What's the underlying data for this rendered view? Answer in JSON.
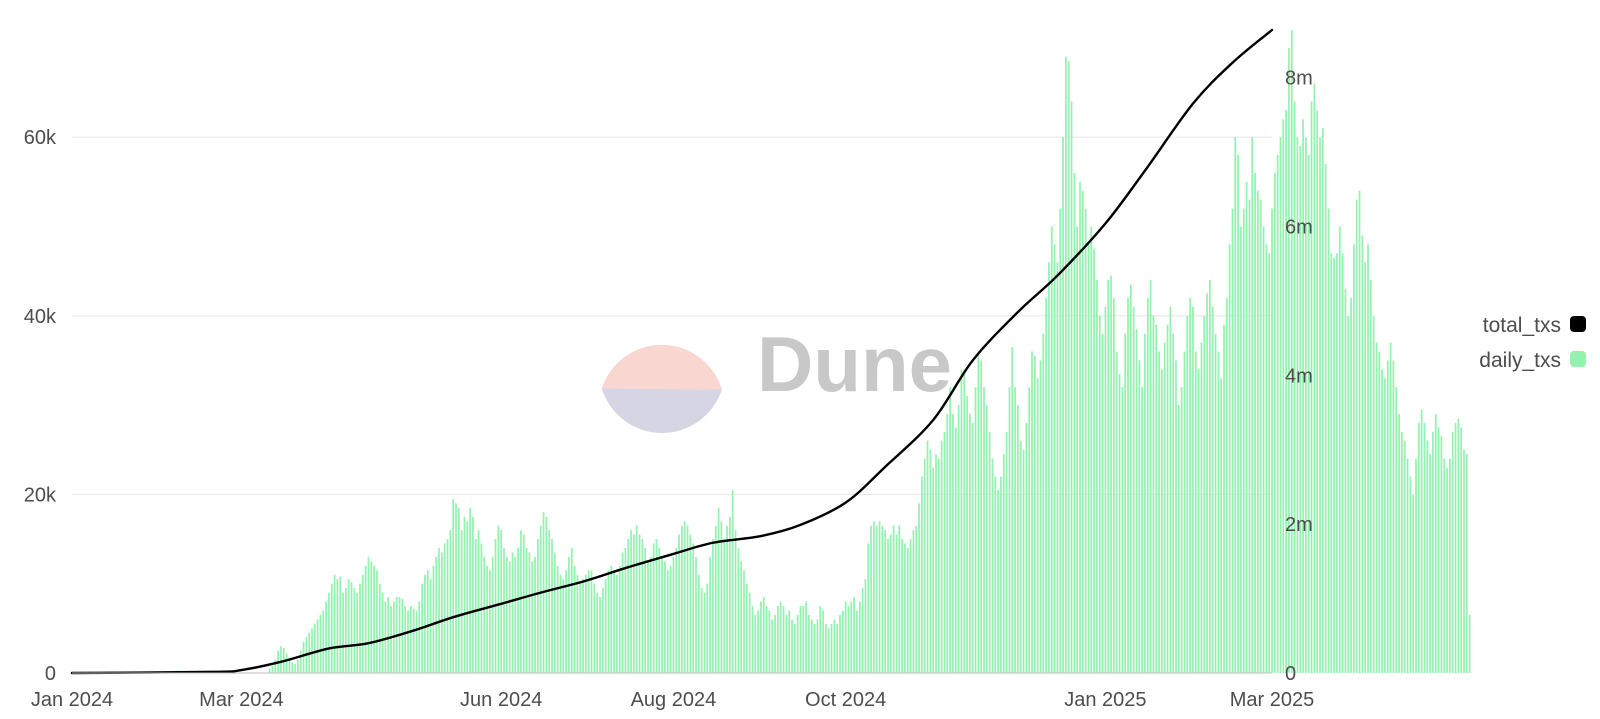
{
  "watermark": {
    "text": "Dune",
    "logo_colors": [
      "#f9d6cf",
      "#d5d5e3"
    ]
  },
  "legend": {
    "placement": "right",
    "items": [
      {
        "label": "total_txs",
        "color": "#000000"
      },
      {
        "label": "daily_txs",
        "color": "#94f2b0"
      }
    ]
  },
  "chart_data": {
    "type": "bar",
    "title": "",
    "xlabel": "",
    "ylabel": "",
    "grid": true,
    "x_range": [
      "2024-01-01",
      "2025-03-01"
    ],
    "x_ticks": [
      {
        "date": "2024-01-01",
        "label": "Jan 2024"
      },
      {
        "date": "2024-03-01",
        "label": "Mar 2024"
      },
      {
        "date": "2024-06-01",
        "label": "Jun 2024"
      },
      {
        "date": "2024-08-01",
        "label": "Aug 2024"
      },
      {
        "date": "2024-10-01",
        "label": "Oct 2024"
      },
      {
        "date": "2025-01-01",
        "label": "Jan 2025"
      },
      {
        "date": "2025-03-01",
        "label": "Mar 2025"
      }
    ],
    "y_left": {
      "ylim": [
        0,
        72000
      ],
      "ticks": [
        {
          "value": 0,
          "label": "0"
        },
        {
          "value": 20000,
          "label": "20k"
        },
        {
          "value": 40000,
          "label": "40k"
        },
        {
          "value": 60000,
          "label": "60k"
        }
      ]
    },
    "y_right": {
      "ylim": [
        0,
        8640000
      ],
      "ticks": [
        {
          "value": 0,
          "label": "0"
        },
        {
          "value": 2000000,
          "label": "2m"
        },
        {
          "value": 4000000,
          "label": "4m"
        },
        {
          "value": 6000000,
          "label": "6m"
        },
        {
          "value": 8000000,
          "label": "8m"
        }
      ]
    },
    "series": [
      {
        "name": "daily_txs",
        "type": "bar",
        "axis": "left",
        "color": "#94f2b0",
        "start_date": "2024-01-01",
        "interval": "day",
        "values": [
          0,
          0,
          0,
          0,
          0,
          0,
          0,
          0,
          0,
          0,
          0,
          0,
          0,
          0,
          0,
          0,
          0,
          0,
          0,
          0,
          0,
          0,
          0,
          0,
          0,
          0,
          0,
          0,
          0,
          0,
          0,
          0,
          0,
          0,
          0,
          0,
          0,
          300,
          0,
          0,
          0,
          0,
          0,
          0,
          0,
          0,
          0,
          0,
          0,
          0,
          0,
          0,
          0,
          0,
          0,
          0,
          0,
          0,
          0,
          0,
          0,
          0,
          0,
          0,
          0,
          0,
          0,
          0,
          0,
          0,
          500,
          800,
          1500,
          2500,
          3000,
          2800,
          2200,
          1500,
          1200,
          1000,
          1500,
          2500,
          3500,
          4000,
          4500,
          5000,
          5500,
          6000,
          6500,
          7000,
          8000,
          9000,
          10000,
          11000,
          10500,
          10800,
          9000,
          9500,
          10500,
          10200,
          9500,
          9000,
          10000,
          11000,
          12000,
          13000,
          12500,
          12000,
          11500,
          10000,
          9000,
          8000,
          8500,
          7500,
          8000,
          8500,
          8500,
          8300,
          7500,
          7000,
          7500,
          7200,
          7000,
          8000,
          10000,
          11000,
          11500,
          10500,
          12000,
          13000,
          14000,
          13500,
          14500,
          15000,
          16000,
          19500,
          19000,
          18500,
          16000,
          17500,
          17000,
          18500,
          17500,
          15000,
          16000,
          14500,
          13000,
          12000,
          11500,
          13000,
          15000,
          16500,
          16000,
          14000,
          13000,
          12500,
          13500,
          13000,
          14000,
          16000,
          15500,
          14000,
          13500,
          12500,
          13000,
          15000,
          16500,
          18000,
          17500,
          16000,
          15000,
          13500,
          12000,
          11000,
          10500,
          11500,
          13000,
          14000,
          12000,
          11000,
          10000,
          10500,
          11000,
          11500,
          11500,
          10000,
          9000,
          8500,
          9500,
          10500,
          11500,
          12000,
          11500,
          11000,
          12000,
          13500,
          14000,
          15000,
          16000,
          15500,
          16500,
          15500,
          15000,
          14000,
          12500,
          13000,
          14500,
          15000,
          14000,
          13000,
          12500,
          11500,
          12000,
          13000,
          14000,
          15500,
          16500,
          17000,
          16500,
          15500,
          14500,
          13000,
          11000,
          9500,
          9000,
          10000,
          13000,
          15000,
          16500,
          18500,
          17000,
          15000,
          16500,
          17500,
          20500,
          16000,
          14000,
          12500,
          11500,
          10000,
          9000,
          7500,
          6500,
          7000,
          8000,
          8500,
          7500,
          7000,
          6000,
          6500,
          7500,
          8000,
          7500,
          6500,
          7000,
          6000,
          5500,
          6500,
          7500,
          7500,
          8000,
          6500,
          6000,
          5500,
          6000,
          7500,
          7000,
          5500,
          5000,
          5500,
          6000,
          5500,
          6500,
          7000,
          8000,
          7500,
          8000,
          8500,
          7000,
          8000,
          9500,
          10500,
          14500,
          16500,
          17000,
          16500,
          17000,
          16500,
          16000,
          15000,
          15500,
          16500,
          15500,
          16500,
          15000,
          14500,
          14000,
          15000,
          16000,
          16500,
          19000,
          22000,
          24000,
          26000,
          25000,
          23000,
          24500,
          24000,
          26000,
          27000,
          29000,
          32000,
          29000,
          27500,
          30000,
          34000,
          34000,
          31000,
          29000,
          28000,
          32000,
          36000,
          35000,
          32000,
          30000,
          27000,
          24000,
          22000,
          20500,
          22000,
          24500,
          27000,
          32000,
          36500,
          32000,
          30000,
          26000,
          25000,
          28000,
          32000,
          36000,
          35500,
          33000,
          35000,
          38000,
          42000,
          46000,
          50000,
          48000,
          46000,
          52000,
          60000,
          69000,
          68500,
          64000,
          56000,
          50000,
          55000,
          54000,
          52000,
          48000,
          50000,
          47500,
          44000,
          40000,
          38000,
          41000,
          44000,
          44500,
          42000,
          36000,
          33500,
          32000,
          38000,
          42000,
          43500,
          41000,
          38500,
          35000,
          32000,
          38000,
          42000,
          44000,
          40000,
          39000,
          36000,
          34000,
          37000,
          39000,
          41000,
          38000,
          35000,
          30000,
          32000,
          36000,
          40000,
          42000,
          41000,
          36000,
          34000,
          37000,
          40000,
          42500,
          44000,
          41000,
          38000,
          36000,
          33000,
          39000,
          42000,
          48000,
          52000,
          60000,
          58000,
          50000,
          52000,
          55000,
          53000,
          60000,
          56000,
          54000,
          53000,
          50000,
          48000,
          47000,
          52000,
          56000,
          58000,
          60000,
          62000,
          63000,
          70000,
          72000,
          64000,
          60000,
          59000,
          62000,
          60000,
          58000,
          64000,
          66000,
          63000,
          60000,
          61000,
          57000,
          52000,
          47000,
          46500,
          47000,
          50000,
          47000,
          43000,
          40000,
          42000,
          48000,
          53000,
          54000,
          49000,
          46000,
          48000,
          44000,
          40000,
          37000,
          36000,
          34000,
          33000,
          35000,
          37000,
          35000,
          32000,
          29000,
          27000,
          26000,
          24000,
          22000,
          20000,
          24000,
          28000,
          29500,
          28000,
          26000,
          24500,
          27000,
          29000,
          27500,
          26500,
          24000,
          23000,
          24000,
          27000,
          28000,
          28500,
          27500,
          25000,
          24500,
          6500
        ]
      },
      {
        "name": "total_txs",
        "type": "line",
        "axis": "right",
        "color": "#000000",
        "points": [
          {
            "date": "2024-01-01",
            "value": 0
          },
          {
            "date": "2024-02-20",
            "value": 15000
          },
          {
            "date": "2024-03-01",
            "value": 40000
          },
          {
            "date": "2024-03-15",
            "value": 150000
          },
          {
            "date": "2024-04-01",
            "value": 330000
          },
          {
            "date": "2024-04-15",
            "value": 400000
          },
          {
            "date": "2024-05-01",
            "value": 570000
          },
          {
            "date": "2024-05-15",
            "value": 750000
          },
          {
            "date": "2024-06-01",
            "value": 930000
          },
          {
            "date": "2024-06-15",
            "value": 1080000
          },
          {
            "date": "2024-07-01",
            "value": 1240000
          },
          {
            "date": "2024-07-15",
            "value": 1410000
          },
          {
            "date": "2024-08-01",
            "value": 1600000
          },
          {
            "date": "2024-08-15",
            "value": 1750000
          },
          {
            "date": "2024-09-01",
            "value": 1840000
          },
          {
            "date": "2024-09-15",
            "value": 1990000
          },
          {
            "date": "2024-10-01",
            "value": 2290000
          },
          {
            "date": "2024-10-15",
            "value": 2770000
          },
          {
            "date": "2024-11-01",
            "value": 3400000
          },
          {
            "date": "2024-11-15",
            "value": 4200000
          },
          {
            "date": "2024-12-01",
            "value": 4850000
          },
          {
            "date": "2024-12-15",
            "value": 5340000
          },
          {
            "date": "2025-01-01",
            "value": 6040000
          },
          {
            "date": "2025-01-15",
            "value": 6750000
          },
          {
            "date": "2025-02-01",
            "value": 7650000
          },
          {
            "date": "2025-02-15",
            "value": 8200000
          },
          {
            "date": "2025-03-01",
            "value": 8640000
          }
        ]
      }
    ]
  }
}
